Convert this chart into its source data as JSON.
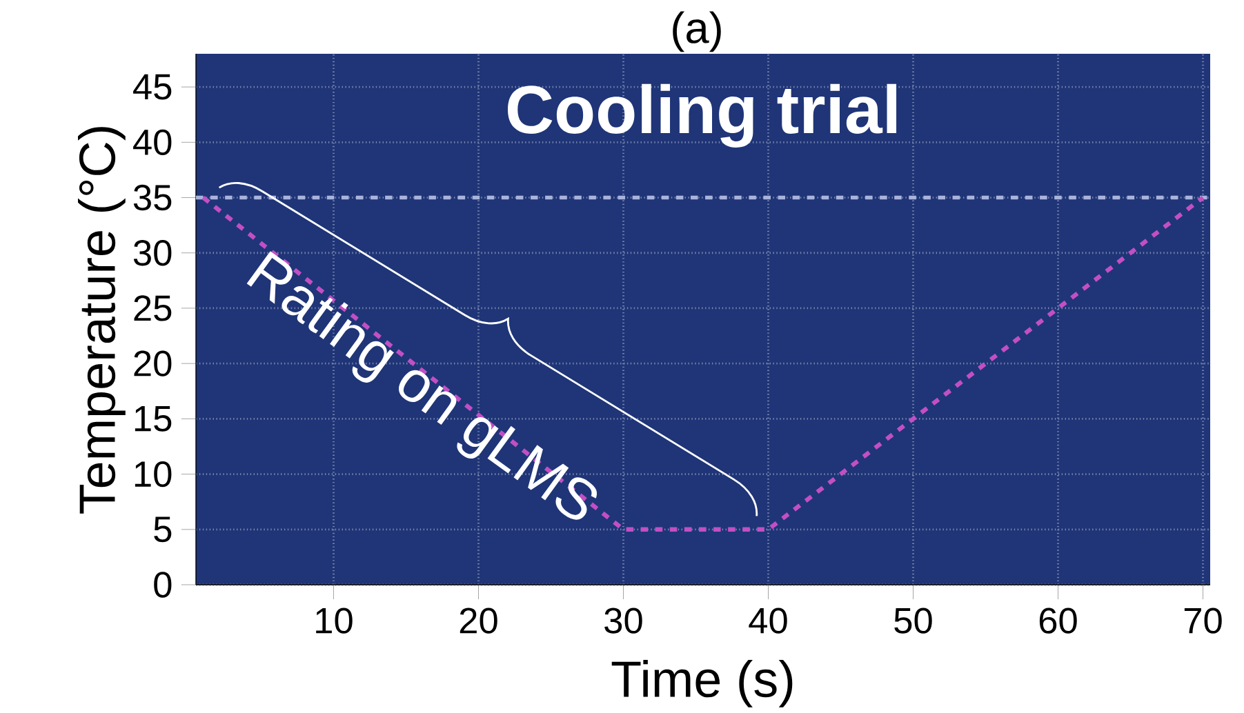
{
  "chart_data": {
    "type": "line",
    "title": "(a)",
    "xlabel": "Time (s)",
    "ylabel": "Temperature (°C)",
    "annotations": [
      "Cooling trial",
      "Rating on gLMS"
    ],
    "x": [
      1,
      30,
      40,
      70
    ],
    "series": [
      {
        "color": "#c24fc4",
        "values": [
          35,
          5,
          5,
          35
        ]
      }
    ],
    "line_style": "dashed",
    "marker": "none",
    "ref_lines": [
      {
        "axis": "y",
        "value": 35,
        "color": "#a9b3dc",
        "line_style": "dashed"
      }
    ],
    "xlim": [
      0.5,
      70.5
    ],
    "ylim": [
      0,
      48
    ],
    "xticks": [
      10,
      20,
      30,
      40,
      50,
      60,
      70
    ],
    "yticks": [
      0,
      5,
      10,
      15,
      20,
      25,
      30,
      35,
      40,
      45
    ],
    "grid": true
  }
}
